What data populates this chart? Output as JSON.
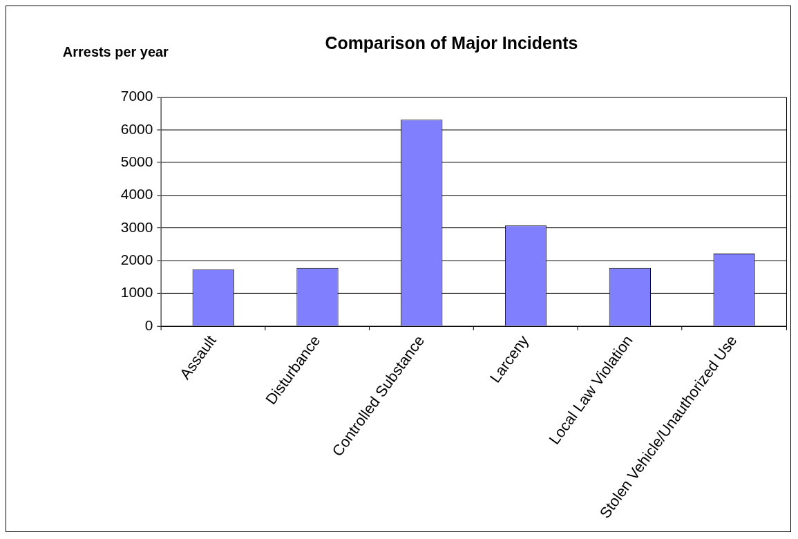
{
  "chart_data": {
    "type": "bar",
    "title": "Comparison of Major Incidents",
    "ylabel": "Arrests per year",
    "categories": [
      "Assault",
      "Disturbance",
      "Controlled Substance",
      "Larceny",
      "Local Law Violation",
      "Stolen Vehicle/Unauthorized Use"
    ],
    "values": [
      1740,
      1780,
      6310,
      3080,
      1780,
      2220
    ],
    "color": "#8080ff",
    "ylim": [
      0,
      7000
    ],
    "yticks": [
      0,
      1000,
      2000,
      3000,
      4000,
      5000,
      6000,
      7000
    ],
    "grid": "y",
    "legend": false
  }
}
